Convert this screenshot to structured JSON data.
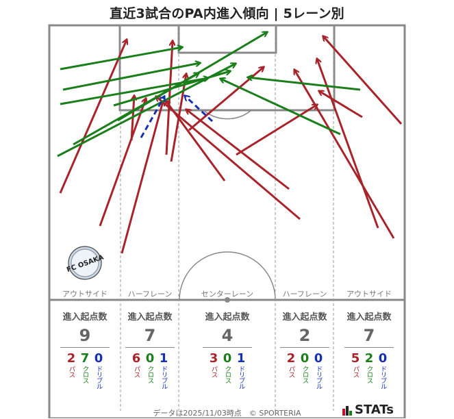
{
  "title": "直近3試合のPA内進入傾向 | 5レーン別",
  "lanes": [
    {
      "label": "アウトサイド",
      "heading": "進入起点数",
      "total": "9",
      "pass": "2",
      "cross": "7",
      "dribble": "0"
    },
    {
      "label": "ハーフレーン",
      "heading": "進入起点数",
      "total": "7",
      "pass": "6",
      "cross": "0",
      "dribble": "1"
    },
    {
      "label": "センターレーン",
      "heading": "進入起点数",
      "total": "4",
      "pass": "3",
      "cross": "0",
      "dribble": "1"
    },
    {
      "label": "ハーフレーン",
      "heading": "進入起点数",
      "total": "2",
      "pass": "2",
      "cross": "0",
      "dribble": "0"
    },
    {
      "label": "アウトサイド",
      "heading": "進入起点数",
      "total": "7",
      "pass": "5",
      "cross": "2",
      "dribble": "0"
    }
  ],
  "type_labels": {
    "pass": "パス",
    "cross": "クロス",
    "dribble": "ドリブル"
  },
  "colors": {
    "pass": "#a8232a",
    "cross": "#1a7f1a",
    "dribble": "#1530b5",
    "lines": "#888888"
  },
  "logo_text": "FC OSAKA",
  "footer": "データは2025/11/03時点　© SPORTERIA",
  "brand": "STATs"
}
